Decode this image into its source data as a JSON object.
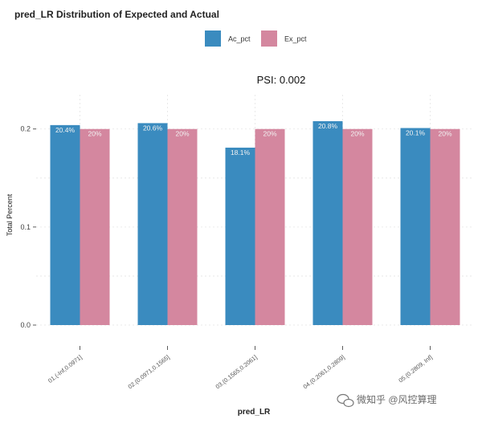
{
  "chart_data": {
    "type": "bar",
    "title": "pred_LR  Distribution of Expected and Actual",
    "annotation": "PSI: 0.002",
    "xlabel": "pred_LR",
    "ylabel": "Total Percent",
    "ylim": [
      0,
      0.235
    ],
    "yticks": [
      0.0,
      0.1,
      0.2
    ],
    "ytick_labels": [
      "0.0",
      "0.1",
      "0.2"
    ],
    "grid": true,
    "legend_position": "top",
    "categories": [
      "01.(-Inf,0.0971]",
      "02.(0.0971,0.1565]",
      "03.(0.1565,0.2061]",
      "04.(0.2061,0.2809]",
      "05.(0.2809, Inf]"
    ],
    "series": [
      {
        "name": "Ac_pct",
        "color": "#3a8bbf",
        "values": [
          0.204,
          0.206,
          0.181,
          0.208,
          0.201
        ],
        "labels": [
          "20.4%",
          "20.6%",
          "18.1%",
          "20.8%",
          "20.1%"
        ]
      },
      {
        "name": "Ex_pct",
        "color": "#d4879f",
        "values": [
          0.2,
          0.2,
          0.2,
          0.2,
          0.2
        ],
        "labels": [
          "20%",
          "20%",
          "20%",
          "20%",
          "20%"
        ]
      }
    ]
  },
  "watermark": {
    "text": "微知乎 @风控算理",
    "icon": "wechat-icon"
  }
}
